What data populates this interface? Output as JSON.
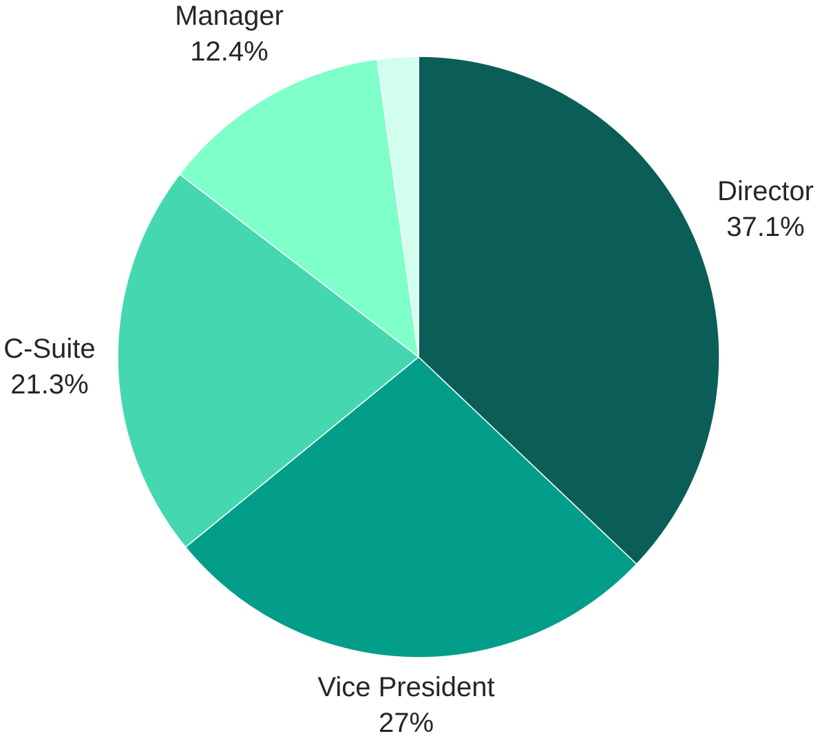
{
  "chart_data": {
    "type": "pie",
    "title": "",
    "start_angle_deg": 0,
    "direction": "clockwise",
    "slices": [
      {
        "name": "Director",
        "value": 37.1,
        "label_value": "37.1%",
        "color": "#0b5e57"
      },
      {
        "name": "Vice President",
        "value": 27.0,
        "label_value": "27%",
        "color": "#029e8a"
      },
      {
        "name": "C-Suite",
        "value": 21.3,
        "label_value": "21.3%",
        "color": "#45d8b0"
      },
      {
        "name": "Manager",
        "value": 12.4,
        "label_value": "12.4%",
        "color": "#7fffc9"
      },
      {
        "name": "",
        "value": 2.2,
        "label_value": "",
        "color": "#d2ffed"
      }
    ]
  }
}
